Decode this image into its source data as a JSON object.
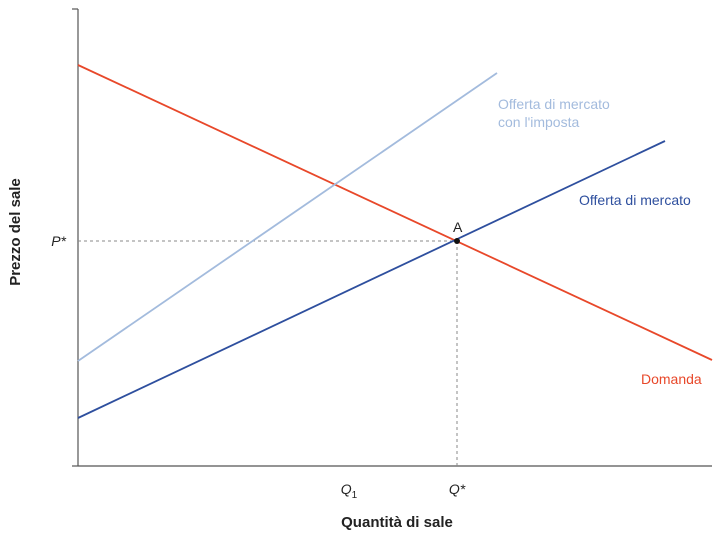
{
  "chart_data": {
    "type": "line",
    "title": "",
    "xlabel": "Quantità di sale",
    "ylabel": "Prezzo del sale",
    "grid": false,
    "legend": "none",
    "xlim": [
      0,
      640
    ],
    "ylim": [
      0,
      460
    ],
    "x_ticks": [
      {
        "label": "Q",
        "subscript": "1",
        "value": 271
      },
      {
        "label": "Q*",
        "subscript": "",
        "value": 379
      }
    ],
    "y_ticks": [
      {
        "label": "P*",
        "value": 225
      }
    ],
    "series": [
      {
        "name": "Domanda",
        "color": "#e8482a",
        "x": [
          0,
          634
        ],
        "y": [
          401,
          106
        ]
      },
      {
        "name": "Offerta di mercato",
        "color": "#2e4f9e",
        "x": [
          0,
          587
        ],
        "y": [
          48,
          325
        ]
      },
      {
        "name": "Offerta di mercato con l'imposta",
        "name_lines": [
          "Offerta di mercato",
          "con l'imposta"
        ],
        "color": "#a3bbdd",
        "x": [
          0,
          419
        ],
        "y": [
          105,
          393
        ]
      }
    ],
    "points": [
      {
        "label": "A",
        "x": 379,
        "y": 225
      }
    ]
  }
}
